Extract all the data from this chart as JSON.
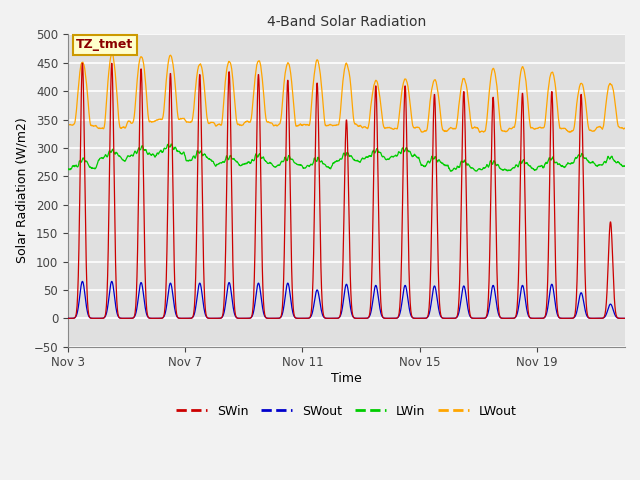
{
  "title": "4-Band Solar Radiation",
  "xlabel": "Time",
  "ylabel": "Solar Radiation (W/m2)",
  "ylim": [
    -50,
    500
  ],
  "annotation_label": "TZ_tmet",
  "x_tick_labels": [
    "Nov 3",
    "Nov 7",
    "Nov 11",
    "Nov 15",
    "Nov 19"
  ],
  "legend_entries": [
    "SWin",
    "SWout",
    "LWin",
    "LWout"
  ],
  "legend_colors": [
    "#cc0000",
    "#0000cc",
    "#00cc00",
    "#ffa500"
  ],
  "background_color": "#f2f2f2",
  "plot_bg_color": "#e0e0e0",
  "grid_color": "#ffffff",
  "num_days": 19,
  "swin_peaks": [
    450,
    450,
    440,
    432,
    430,
    435,
    430,
    420,
    415,
    350,
    410,
    410,
    395,
    400,
    390,
    397,
    400,
    395,
    170
  ],
  "swout_peaks": [
    65,
    65,
    63,
    62,
    62,
    63,
    62,
    62,
    50,
    60,
    58,
    58,
    57,
    57,
    58,
    58,
    60,
    45,
    25
  ],
  "lwout_night_start": [
    340,
    335,
    345,
    350,
    345,
    340,
    345,
    340,
    340,
    340,
    335,
    335,
    330,
    335,
    330,
    335,
    335,
    330,
    335
  ],
  "lwout_peak": [
    452,
    465,
    462,
    465,
    450,
    455,
    455,
    450,
    455,
    450,
    420,
    422,
    420,
    423,
    440,
    444,
    435,
    415,
    415
  ],
  "lwin_base_values": [
    263,
    280,
    285,
    290,
    278,
    270,
    272,
    268,
    265,
    275,
    280,
    283,
    268,
    260,
    260,
    262,
    265,
    272,
    268
  ]
}
